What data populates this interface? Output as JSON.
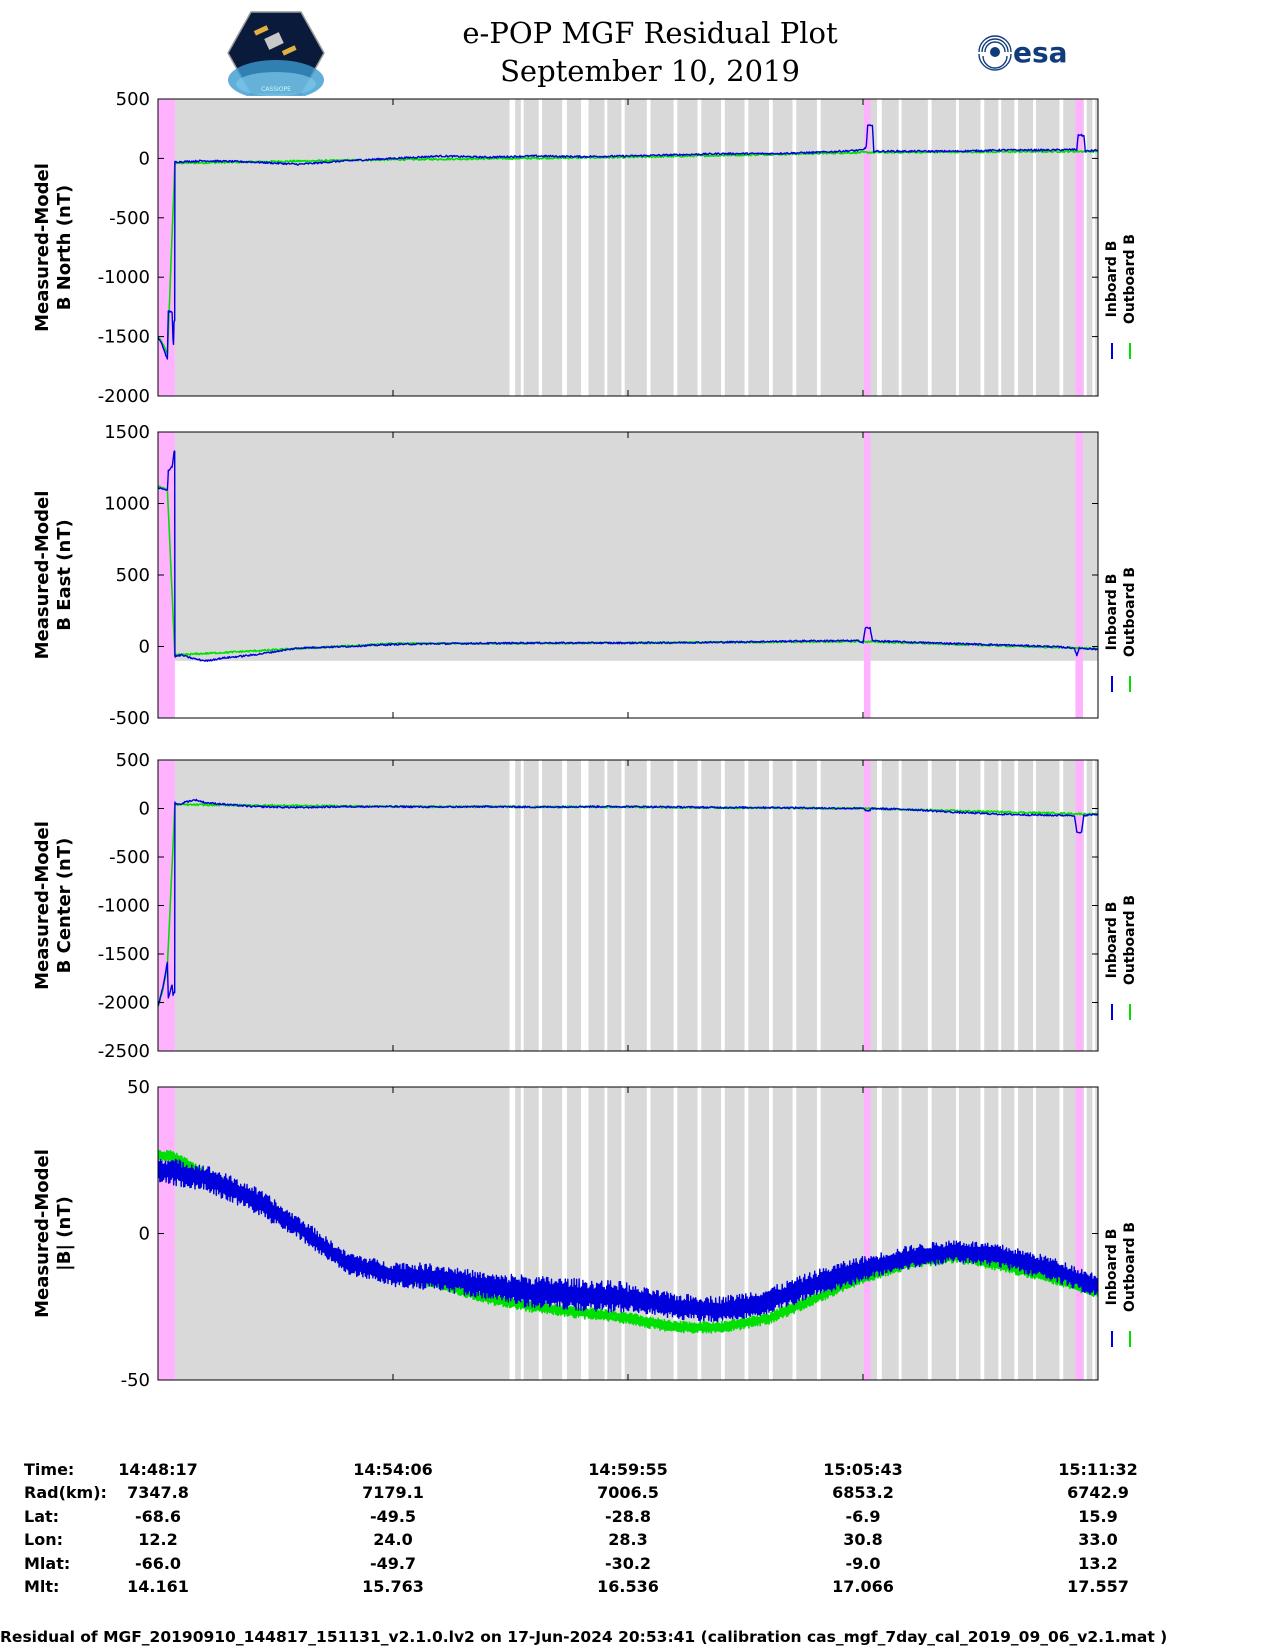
{
  "header": {
    "title_line1": "e-POP MGF Residual Plot",
    "title_line2": "September 10, 2019",
    "esa_logo_text": "esa",
    "cassiope_logo_text": "CASSIOPE"
  },
  "legend": {
    "inboard": "Inboard B",
    "outboard": "Outboard B"
  },
  "colors": {
    "inboard": "#0000dd",
    "outboard": "#00e000",
    "pink_shade": "#ffb3ff",
    "gray_shade": "#d9d9d9"
  },
  "chart_data": [
    {
      "type": "line",
      "ylabel_line1": "Measured-Model",
      "ylabel_line2": "B North (nT)",
      "ylim": [
        -2000,
        500
      ],
      "yticks": [
        -2000,
        -1500,
        -1000,
        -500,
        0,
        500
      ],
      "gray_shades": true,
      "series": [
        {
          "name": "Inboard B",
          "points": [
            [
              0,
              -1510
            ],
            [
              0.05,
              -1540
            ],
            [
              0.1,
              -1580
            ],
            [
              0.15,
              -1640
            ],
            [
              0.2,
              -1690
            ],
            [
              0.21,
              -1450
            ],
            [
              0.22,
              -1280
            ],
            [
              0.3,
              -1300
            ],
            [
              0.32,
              -1530
            ],
            [
              0.33,
              -1560
            ],
            [
              0.34,
              -1380
            ],
            [
              0.355,
              -1370
            ],
            [
              0.36,
              -30
            ],
            [
              1,
              -20
            ],
            [
              2,
              -30
            ],
            [
              3,
              -50
            ],
            [
              4,
              -20
            ],
            [
              5,
              0
            ],
            [
              6,
              20
            ],
            [
              7,
              10
            ],
            [
              8,
              20
            ],
            [
              9,
              15
            ],
            [
              10,
              20
            ],
            [
              11,
              30
            ],
            [
              12,
              40
            ],
            [
              13,
              40
            ],
            [
              14,
              50
            ],
            [
              15,
              70
            ],
            [
              15.07,
              100
            ],
            [
              15.1,
              280
            ],
            [
              15.2,
              270
            ],
            [
              15.23,
              60
            ],
            [
              16,
              60
            ],
            [
              17,
              60
            ],
            [
              18,
              70
            ],
            [
              19,
              70
            ],
            [
              19.55,
              75
            ],
            [
              19.58,
              200
            ],
            [
              19.7,
              190
            ],
            [
              19.73,
              60
            ],
            [
              20,
              70
            ]
          ]
        },
        {
          "name": "Outboard B",
          "points": [
            [
              0,
              -1500
            ],
            [
              0.1,
              -1560
            ],
            [
              0.2,
              -1650
            ],
            [
              0.36,
              -40
            ],
            [
              5,
              -10
            ],
            [
              10,
              10
            ],
            [
              15,
              50
            ],
            [
              20,
              60
            ]
          ]
        }
      ]
    },
    {
      "type": "line",
      "ylabel_line1": "Measured-Model",
      "ylabel_line2": "B East (nT)",
      "ylim": [
        -500,
        1500
      ],
      "yticks": [
        -500,
        0,
        500,
        1000,
        1500
      ],
      "gray_shades": false,
      "gray_band_y": [
        -100,
        1500
      ],
      "series": [
        {
          "name": "Inboard B",
          "points": [
            [
              0,
              1110
            ],
            [
              0.1,
              1100
            ],
            [
              0.2,
              1090
            ],
            [
              0.21,
              1160
            ],
            [
              0.22,
              1230
            ],
            [
              0.3,
              1260
            ],
            [
              0.32,
              1300
            ],
            [
              0.34,
              1360
            ],
            [
              0.355,
              1370
            ],
            [
              0.36,
              -70
            ],
            [
              0.5,
              -60
            ],
            [
              0.7,
              -80
            ],
            [
              0.9,
              -95
            ],
            [
              1.05,
              -100
            ],
            [
              1.2,
              -90
            ],
            [
              1.4,
              -80
            ],
            [
              2,
              -60
            ],
            [
              3,
              -10
            ],
            [
              4,
              0
            ],
            [
              5,
              15
            ],
            [
              6,
              20
            ],
            [
              8,
              25
            ],
            [
              10,
              25
            ],
            [
              12,
              30
            ],
            [
              14,
              40
            ],
            [
              14.9,
              40
            ],
            [
              15,
              30
            ],
            [
              15.05,
              130
            ],
            [
              15.15,
              130
            ],
            [
              15.2,
              40
            ],
            [
              16,
              30
            ],
            [
              17,
              20
            ],
            [
              18,
              10
            ],
            [
              19,
              0
            ],
            [
              19.5,
              -10
            ],
            [
              19.55,
              -70
            ],
            [
              19.6,
              -10
            ],
            [
              20,
              -20
            ]
          ]
        },
        {
          "name": "Outboard B",
          "points": [
            [
              0,
              1120
            ],
            [
              0.1,
              1110
            ],
            [
              0.2,
              1090
            ],
            [
              0.36,
              -60
            ],
            [
              5,
              20
            ],
            [
              10,
              25
            ],
            [
              15,
              35
            ],
            [
              20,
              -15
            ]
          ]
        }
      ]
    },
    {
      "type": "line",
      "ylabel_line1": "Measured-Model",
      "ylabel_line2": "B Center (nT)",
      "ylim": [
        -2500,
        500
      ],
      "yticks": [
        -2500,
        -2000,
        -1500,
        -1000,
        -500,
        0,
        500
      ],
      "gray_shades": true,
      "series": [
        {
          "name": "Inboard B",
          "points": [
            [
              0,
              -2030
            ],
            [
              0.05,
              -1950
            ],
            [
              0.1,
              -1850
            ],
            [
              0.15,
              -1720
            ],
            [
              0.2,
              -1580
            ],
            [
              0.21,
              -1800
            ],
            [
              0.22,
              -1950
            ],
            [
              0.28,
              -1850
            ],
            [
              0.3,
              -1820
            ],
            [
              0.32,
              -1920
            ],
            [
              0.34,
              -1900
            ],
            [
              0.355,
              -1890
            ],
            [
              0.36,
              60
            ],
            [
              0.45,
              40
            ],
            [
              0.6,
              70
            ],
            [
              0.8,
              90
            ],
            [
              1,
              60
            ],
            [
              2,
              20
            ],
            [
              3,
              10
            ],
            [
              4,
              20
            ],
            [
              5,
              20
            ],
            [
              6,
              15
            ],
            [
              7,
              20
            ],
            [
              8,
              15
            ],
            [
              9,
              20
            ],
            [
              10,
              20
            ],
            [
              11,
              15
            ],
            [
              12,
              10
            ],
            [
              13,
              10
            ],
            [
              14,
              5
            ],
            [
              15,
              0
            ],
            [
              15.1,
              -30
            ],
            [
              15.2,
              0
            ],
            [
              16,
              -10
            ],
            [
              17,
              -40
            ],
            [
              18,
              -60
            ],
            [
              19,
              -70
            ],
            [
              19.5,
              -70
            ],
            [
              19.55,
              -250
            ],
            [
              19.65,
              -250
            ],
            [
              19.7,
              -70
            ],
            [
              20,
              -60
            ]
          ]
        },
        {
          "name": "Outboard B",
          "points": [
            [
              0,
              -2040
            ],
            [
              0.1,
              -1880
            ],
            [
              0.2,
              -1620
            ],
            [
              0.36,
              40
            ],
            [
              5,
              20
            ],
            [
              10,
              15
            ],
            [
              15,
              0
            ],
            [
              20,
              -60
            ]
          ]
        }
      ]
    },
    {
      "type": "line",
      "ylabel_line1": "Measured-Model",
      "ylabel_line2": "|B| (nT)",
      "ylim": [
        -50,
        50
      ],
      "yticks": [
        -50,
        0,
        50
      ],
      "gray_shades": true,
      "noisy": true,
      "series": [
        {
          "name": "Inboard B",
          "amplitude": [
            4.5,
            3.8,
            4.5,
            5.5,
            4.5,
            4.5,
            4,
            4
          ],
          "points": [
            [
              0,
              22
            ],
            [
              1,
              19
            ],
            [
              2,
              12
            ],
            [
              3,
              2
            ],
            [
              4,
              -10
            ],
            [
              5,
              -14
            ],
            [
              6,
              -15
            ],
            [
              7,
              -18
            ],
            [
              8,
              -20
            ],
            [
              9,
              -21
            ],
            [
              10,
              -22
            ],
            [
              11,
              -25
            ],
            [
              12,
              -26
            ],
            [
              13,
              -23
            ],
            [
              14,
              -17
            ],
            [
              15,
              -12
            ],
            [
              16,
              -8
            ],
            [
              17,
              -6
            ],
            [
              18,
              -8
            ],
            [
              19,
              -12
            ],
            [
              20,
              -18
            ]
          ]
        },
        {
          "name": "Outboard B",
          "amplitude": [
            2
          ],
          "points": [
            [
              0,
              27
            ],
            [
              0.36,
              26
            ],
            [
              1,
              20
            ],
            [
              2,
              12
            ],
            [
              3,
              2
            ],
            [
              4,
              -10
            ],
            [
              5,
              -14
            ],
            [
              6,
              -17
            ],
            [
              7,
              -22
            ],
            [
              8,
              -25
            ],
            [
              9,
              -27
            ],
            [
              10,
              -29
            ],
            [
              11,
              -32
            ],
            [
              12,
              -32
            ],
            [
              13,
              -29
            ],
            [
              14,
              -22
            ],
            [
              15,
              -15
            ],
            [
              16,
              -10
            ],
            [
              17,
              -8
            ],
            [
              18,
              -11
            ],
            [
              19,
              -15
            ],
            [
              20,
              -20
            ]
          ]
        }
      ]
    }
  ],
  "time_axis": {
    "xlim": [
      0,
      20
    ],
    "tick_positions": [
      0,
      5,
      10,
      15,
      20
    ],
    "pink_regions": [
      [
        0,
        0.36
      ],
      [
        15.02,
        15.16
      ],
      [
        19.52,
        19.68
      ]
    ],
    "gray_gaps": [
      [
        7.48,
        7.6
      ],
      [
        7.72,
        7.78
      ],
      [
        8.1,
        8.17
      ],
      [
        8.6,
        8.7
      ],
      [
        9.0,
        9.16
      ],
      [
        9.5,
        9.56
      ],
      [
        9.86,
        9.93
      ],
      [
        10.4,
        10.48
      ],
      [
        10.97,
        11.05
      ],
      [
        11.48,
        11.56
      ],
      [
        11.98,
        12.06
      ],
      [
        12.48,
        12.56
      ],
      [
        13.0,
        13.08
      ],
      [
        13.5,
        13.58
      ],
      [
        14.02,
        14.1
      ],
      [
        15.3,
        15.4
      ],
      [
        15.76,
        15.82
      ],
      [
        16.38,
        16.46
      ],
      [
        16.98,
        17.04
      ],
      [
        17.5,
        17.58
      ],
      [
        17.88,
        17.94
      ],
      [
        18.22,
        18.3
      ],
      [
        18.62,
        18.68
      ],
      [
        19.18,
        19.26
      ],
      [
        19.7,
        19.76
      ],
      [
        19.88,
        19.94
      ]
    ]
  },
  "info_table": {
    "rows": [
      {
        "label": "Time:",
        "values": [
          "14:48:17",
          "14:54:06",
          "14:59:55",
          "15:05:43",
          "15:11:32"
        ]
      },
      {
        "label": "Rad(km):",
        "values": [
          "7347.8",
          "7179.1",
          "7006.5",
          "6853.2",
          "6742.9"
        ]
      },
      {
        "label": "Lat:",
        "values": [
          "-68.6",
          "-49.5",
          "-28.8",
          "-6.9",
          "15.9"
        ]
      },
      {
        "label": "Lon:",
        "values": [
          "12.2",
          "24.0",
          "28.3",
          "30.8",
          "33.0"
        ]
      },
      {
        "label": "Mlat:",
        "values": [
          "-66.0",
          "-49.7",
          "-30.2",
          "-9.0",
          "13.2"
        ]
      },
      {
        "label": "Mlt:",
        "values": [
          "14.161",
          "15.763",
          "16.536",
          "17.066",
          "17.557"
        ]
      }
    ]
  },
  "footer": "Residual of MGF_20190910_144817_151131_v2.1.0.lv2 on 17-Jun-2024 20:53:41 (calibration cas_mgf_7day_cal_2019_09_06_v2.1.mat )"
}
